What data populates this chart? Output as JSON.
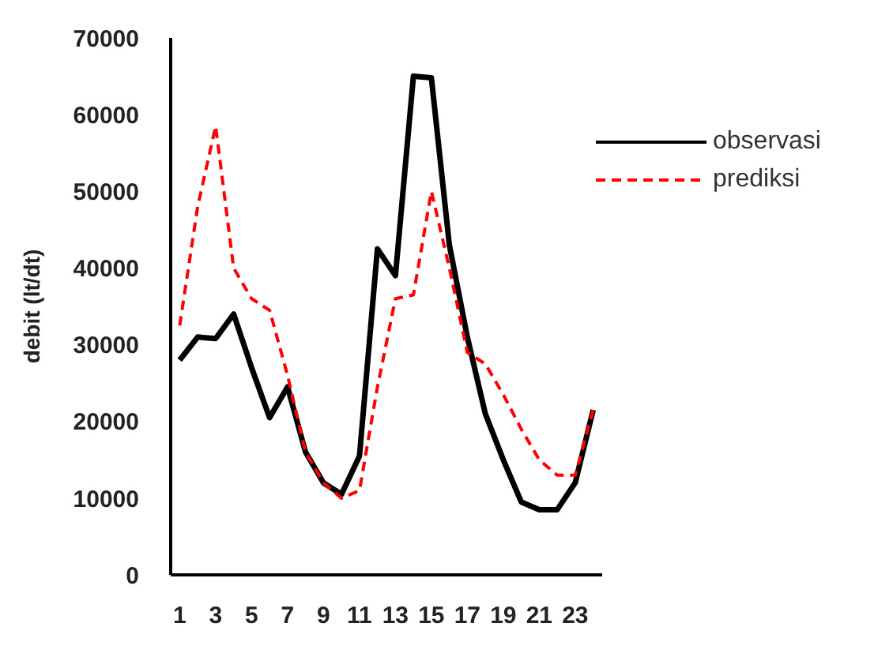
{
  "chart_data": {
    "type": "line",
    "ylabel": "debit (lt/dt)",
    "x": [
      1,
      2,
      3,
      4,
      5,
      6,
      7,
      8,
      9,
      10,
      11,
      12,
      13,
      14,
      15,
      16,
      17,
      18,
      19,
      20,
      21,
      22,
      23,
      24
    ],
    "xlim": [
      0.5,
      24.5
    ],
    "xticks": [
      1,
      3,
      5,
      7,
      9,
      11,
      13,
      15,
      17,
      19,
      21,
      23
    ],
    "ylim": [
      0,
      70000
    ],
    "yticks": [
      0,
      10000,
      20000,
      30000,
      40000,
      50000,
      60000,
      70000
    ],
    "grid": false,
    "legend": "top right",
    "marker": "none",
    "series": [
      {
        "name": "observasi",
        "color": "#000000",
        "line_style": "solid",
        "values": [
          28000,
          31000,
          30800,
          34000,
          27000,
          20500,
          24500,
          16000,
          12000,
          10500,
          15500,
          42500,
          39000,
          65000,
          64800,
          43000,
          31000,
          21000,
          15000,
          9500,
          8500,
          8500,
          12000,
          21500
        ]
      },
      {
        "name": "prediksi",
        "color": "#ff0000",
        "line_style": "dashed",
        "values": [
          32500,
          48000,
          58500,
          40000,
          36000,
          34500,
          26000,
          16000,
          12000,
          10000,
          11000,
          24500,
          36000,
          36500,
          50000,
          40000,
          29000,
          27500,
          23500,
          19000,
          15000,
          13000,
          13000,
          21500
        ]
      }
    ]
  }
}
